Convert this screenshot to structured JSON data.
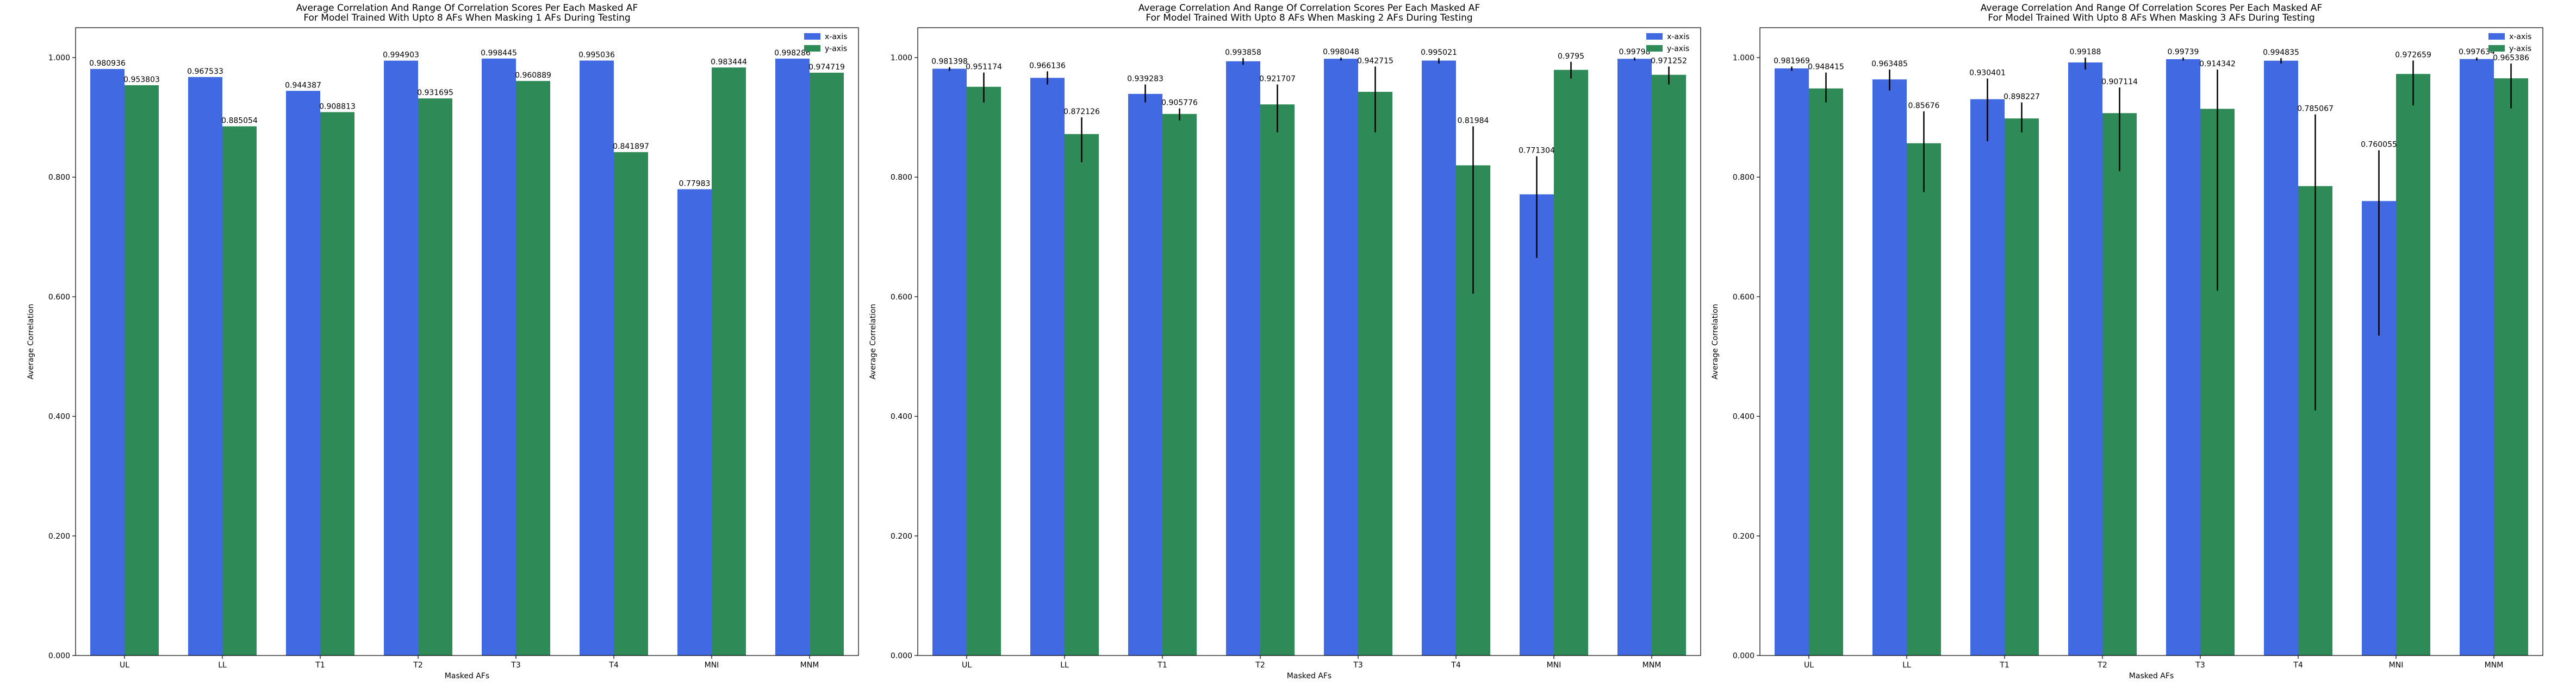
{
  "chart_data": [
    {
      "type": "bar",
      "title": [
        "Average Correlation And Range Of Correlation Scores Per Each Masked AF",
        "For Model Trained With Upto 8 AFs When Masking 1 AFs During Testing"
      ],
      "xlabel": "Masked AFs",
      "ylabel": "Average Correlation",
      "ylim": [
        0,
        1.05
      ],
      "yticks": [
        "0.000",
        "0.200",
        "0.400",
        "0.600",
        "0.800",
        "1.000"
      ],
      "legend_position": "top-right",
      "categories": [
        "UL",
        "LL",
        "T1",
        "T2",
        "T3",
        "T4",
        "MNI",
        "MNM"
      ],
      "series": [
        {
          "name": "x-axis",
          "color": "#4169e1",
          "values": [
            0.980936,
            0.967533,
            0.944387,
            0.994903,
            0.998445,
            0.995036,
            0.77983,
            0.998286
          ],
          "labels": [
            "0.980936",
            "0.967533",
            "0.944387",
            "0.994903",
            "0.998445",
            "0.995036",
            "0.77983",
            "0.998286"
          ],
          "errors": null
        },
        {
          "name": "y-axis",
          "color": "#2e8b57",
          "values": [
            0.953803,
            0.885054,
            0.908813,
            0.931695,
            0.960889,
            0.841897,
            0.983444,
            0.974719
          ],
          "labels": [
            "0.953803",
            "0.885054",
            "0.908813",
            "0.931695",
            "0.960889",
            "0.841897",
            "0.983444",
            "0.974719"
          ],
          "errors": null
        }
      ]
    },
    {
      "type": "bar",
      "title": [
        "Average Correlation And Range Of Correlation Scores Per Each Masked AF",
        "For Model Trained With Upto 8 AFs When Masking 2 AFs During Testing"
      ],
      "xlabel": "Masked AFs",
      "ylabel": "Average Correlation",
      "ylim": [
        0,
        1.05
      ],
      "yticks": [
        "0.000",
        "0.200",
        "0.400",
        "0.600",
        "0.800",
        "1.000"
      ],
      "legend_position": "top-right",
      "categories": [
        "UL",
        "LL",
        "T1",
        "T2",
        "T3",
        "T4",
        "MNI",
        "MNM"
      ],
      "series": [
        {
          "name": "x-axis",
          "color": "#4169e1",
          "values": [
            0.981398,
            0.966136,
            0.939283,
            0.993858,
            0.998048,
            0.995021,
            0.771304,
            0.99798
          ],
          "labels": [
            "0.981398",
            "0.966136",
            "0.939283",
            "0.993858",
            "0.998048",
            "0.995021",
            "0.771304",
            "0.99798"
          ],
          "errors": [
            [
              0.978,
              0.984
            ],
            [
              0.955,
              0.977
            ],
            [
              0.925,
              0.955
            ],
            [
              0.988,
              0.999
            ],
            [
              0.995,
              1.0
            ],
            [
              0.99,
              0.999
            ],
            [
              0.665,
              0.835
            ],
            [
              0.995,
              1.0
            ]
          ]
        },
        {
          "name": "y-axis",
          "color": "#2e8b57",
          "values": [
            0.951174,
            0.872126,
            0.905776,
            0.921707,
            0.942715,
            0.81984,
            0.9795,
            0.971252
          ],
          "labels": [
            "0.951174",
            "0.872126",
            "0.905776",
            "0.921707",
            "0.942715",
            "0.81984",
            "0.9795",
            "0.971252"
          ],
          "errors": [
            [
              0.925,
              0.975
            ],
            [
              0.825,
              0.9
            ],
            [
              0.895,
              0.915
            ],
            [
              0.875,
              0.955
            ],
            [
              0.875,
              0.985
            ],
            [
              0.605,
              0.885
            ],
            [
              0.965,
              0.993
            ],
            [
              0.955,
              0.985
            ]
          ]
        }
      ]
    },
    {
      "type": "bar",
      "title": [
        "Average Correlation And Range Of Correlation Scores Per Each Masked AF",
        "For Model Trained With Upto 8 AFs When Masking 3 AFs During Testing"
      ],
      "xlabel": "Masked AFs",
      "ylabel": "Average Correlation",
      "ylim": [
        0,
        1.05
      ],
      "yticks": [
        "0.000",
        "0.200",
        "0.400",
        "0.600",
        "0.800",
        "1.000"
      ],
      "legend_position": "top-right",
      "categories": [
        "UL",
        "LL",
        "T1",
        "T2",
        "T3",
        "T4",
        "MNI",
        "MNM"
      ],
      "series": [
        {
          "name": "x-axis",
          "color": "#4169e1",
          "values": [
            0.981969,
            0.963485,
            0.930401,
            0.99188,
            0.99739,
            0.994835,
            0.760055,
            0.997634
          ],
          "labels": [
            "0.981969",
            "0.963485",
            "0.930401",
            "0.99188",
            "0.99739",
            "0.994835",
            "0.760055",
            "0.997634"
          ],
          "errors": [
            [
              0.978,
              0.985
            ],
            [
              0.945,
              0.98
            ],
            [
              0.86,
              0.965
            ],
            [
              0.98,
              1.0
            ],
            [
              0.995,
              1.0
            ],
            [
              0.99,
              0.999
            ],
            [
              0.535,
              0.845
            ],
            [
              0.995,
              1.0
            ]
          ]
        },
        {
          "name": "y-axis",
          "color": "#2e8b57",
          "values": [
            0.948415,
            0.85676,
            0.898227,
            0.907114,
            0.914342,
            0.785067,
            0.972659,
            0.965386
          ],
          "labels": [
            "0.948415",
            "0.85676",
            "0.898227",
            "0.907114",
            "0.914342",
            "0.785067",
            "0.972659",
            "0.965386"
          ],
          "errors": [
            [
              0.925,
              0.975
            ],
            [
              0.775,
              0.91
            ],
            [
              0.875,
              0.925
            ],
            [
              0.81,
              0.95
            ],
            [
              0.61,
              0.98
            ],
            [
              0.41,
              0.905
            ],
            [
              0.92,
              0.995
            ],
            [
              0.915,
              0.99
            ]
          ]
        }
      ]
    }
  ]
}
